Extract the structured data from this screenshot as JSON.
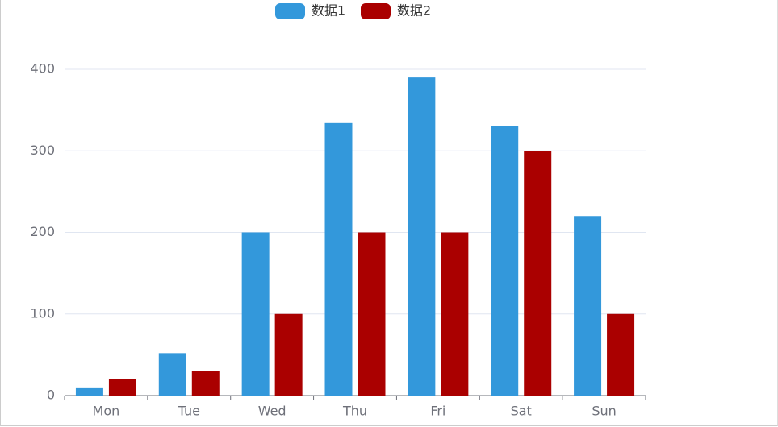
{
  "chart_data": {
    "type": "bar",
    "categories": [
      "Mon",
      "Tue",
      "Wed",
      "Thu",
      "Fri",
      "Sat",
      "Sun"
    ],
    "series": [
      {
        "name": "数据1",
        "color": "#3398db",
        "values": [
          10,
          52,
          200,
          334,
          390,
          330,
          220
        ]
      },
      {
        "name": "数据2",
        "color": "#aa0000",
        "values": [
          20,
          30,
          100,
          200,
          200,
          300,
          100
        ]
      }
    ],
    "ylim": [
      0,
      400
    ],
    "yticks": [
      0,
      100,
      200,
      300,
      400
    ],
    "grid": true,
    "legend": "top"
  }
}
